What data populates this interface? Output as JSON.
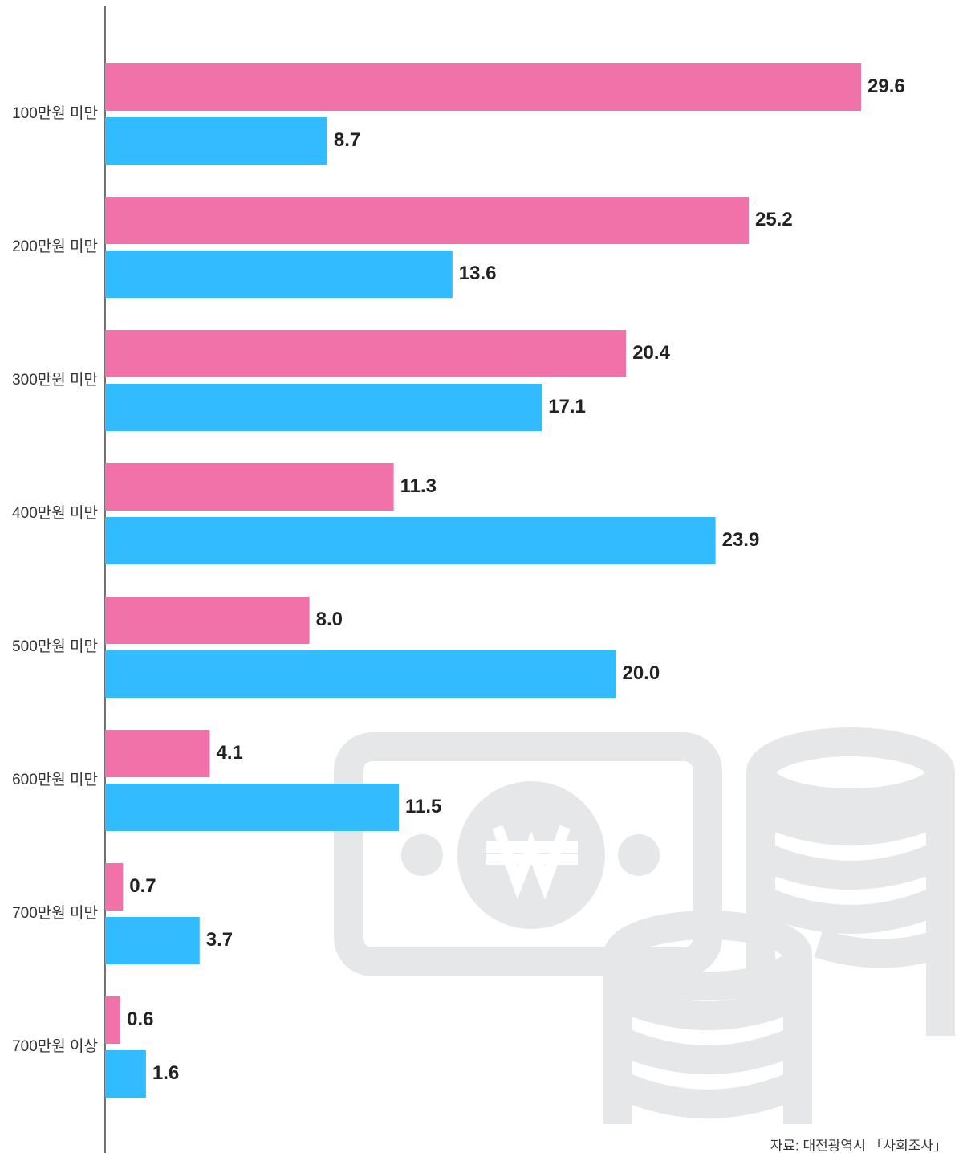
{
  "chart_data": {
    "type": "hbar",
    "categories": [
      "100만원 미만",
      "200만원 미만",
      "300만원 미만",
      "400만원 미만",
      "500만원 미만",
      "600만원 미만",
      "700만원 미만",
      "700만원 이상"
    ],
    "series": [
      {
        "color": "#f072a9",
        "values": [
          29.6,
          25.2,
          20.4,
          11.3,
          8.0,
          4.1,
          0.7,
          0.6
        ],
        "value_labels": [
          "29.6",
          "25.2",
          "20.4",
          "11.3",
          "8.0",
          "4.1",
          "0.7",
          "0.6"
        ]
      },
      {
        "color": "#33bbff",
        "values": [
          8.7,
          13.6,
          17.1,
          23.9,
          20.0,
          11.5,
          3.7,
          1.6
        ],
        "value_labels": [
          "8.7",
          "13.6",
          "17.1",
          "23.9",
          "20.0",
          "11.5",
          "3.7",
          "1.6"
        ]
      }
    ]
  },
  "source": "자료: 대전광역시 「사회조사」"
}
